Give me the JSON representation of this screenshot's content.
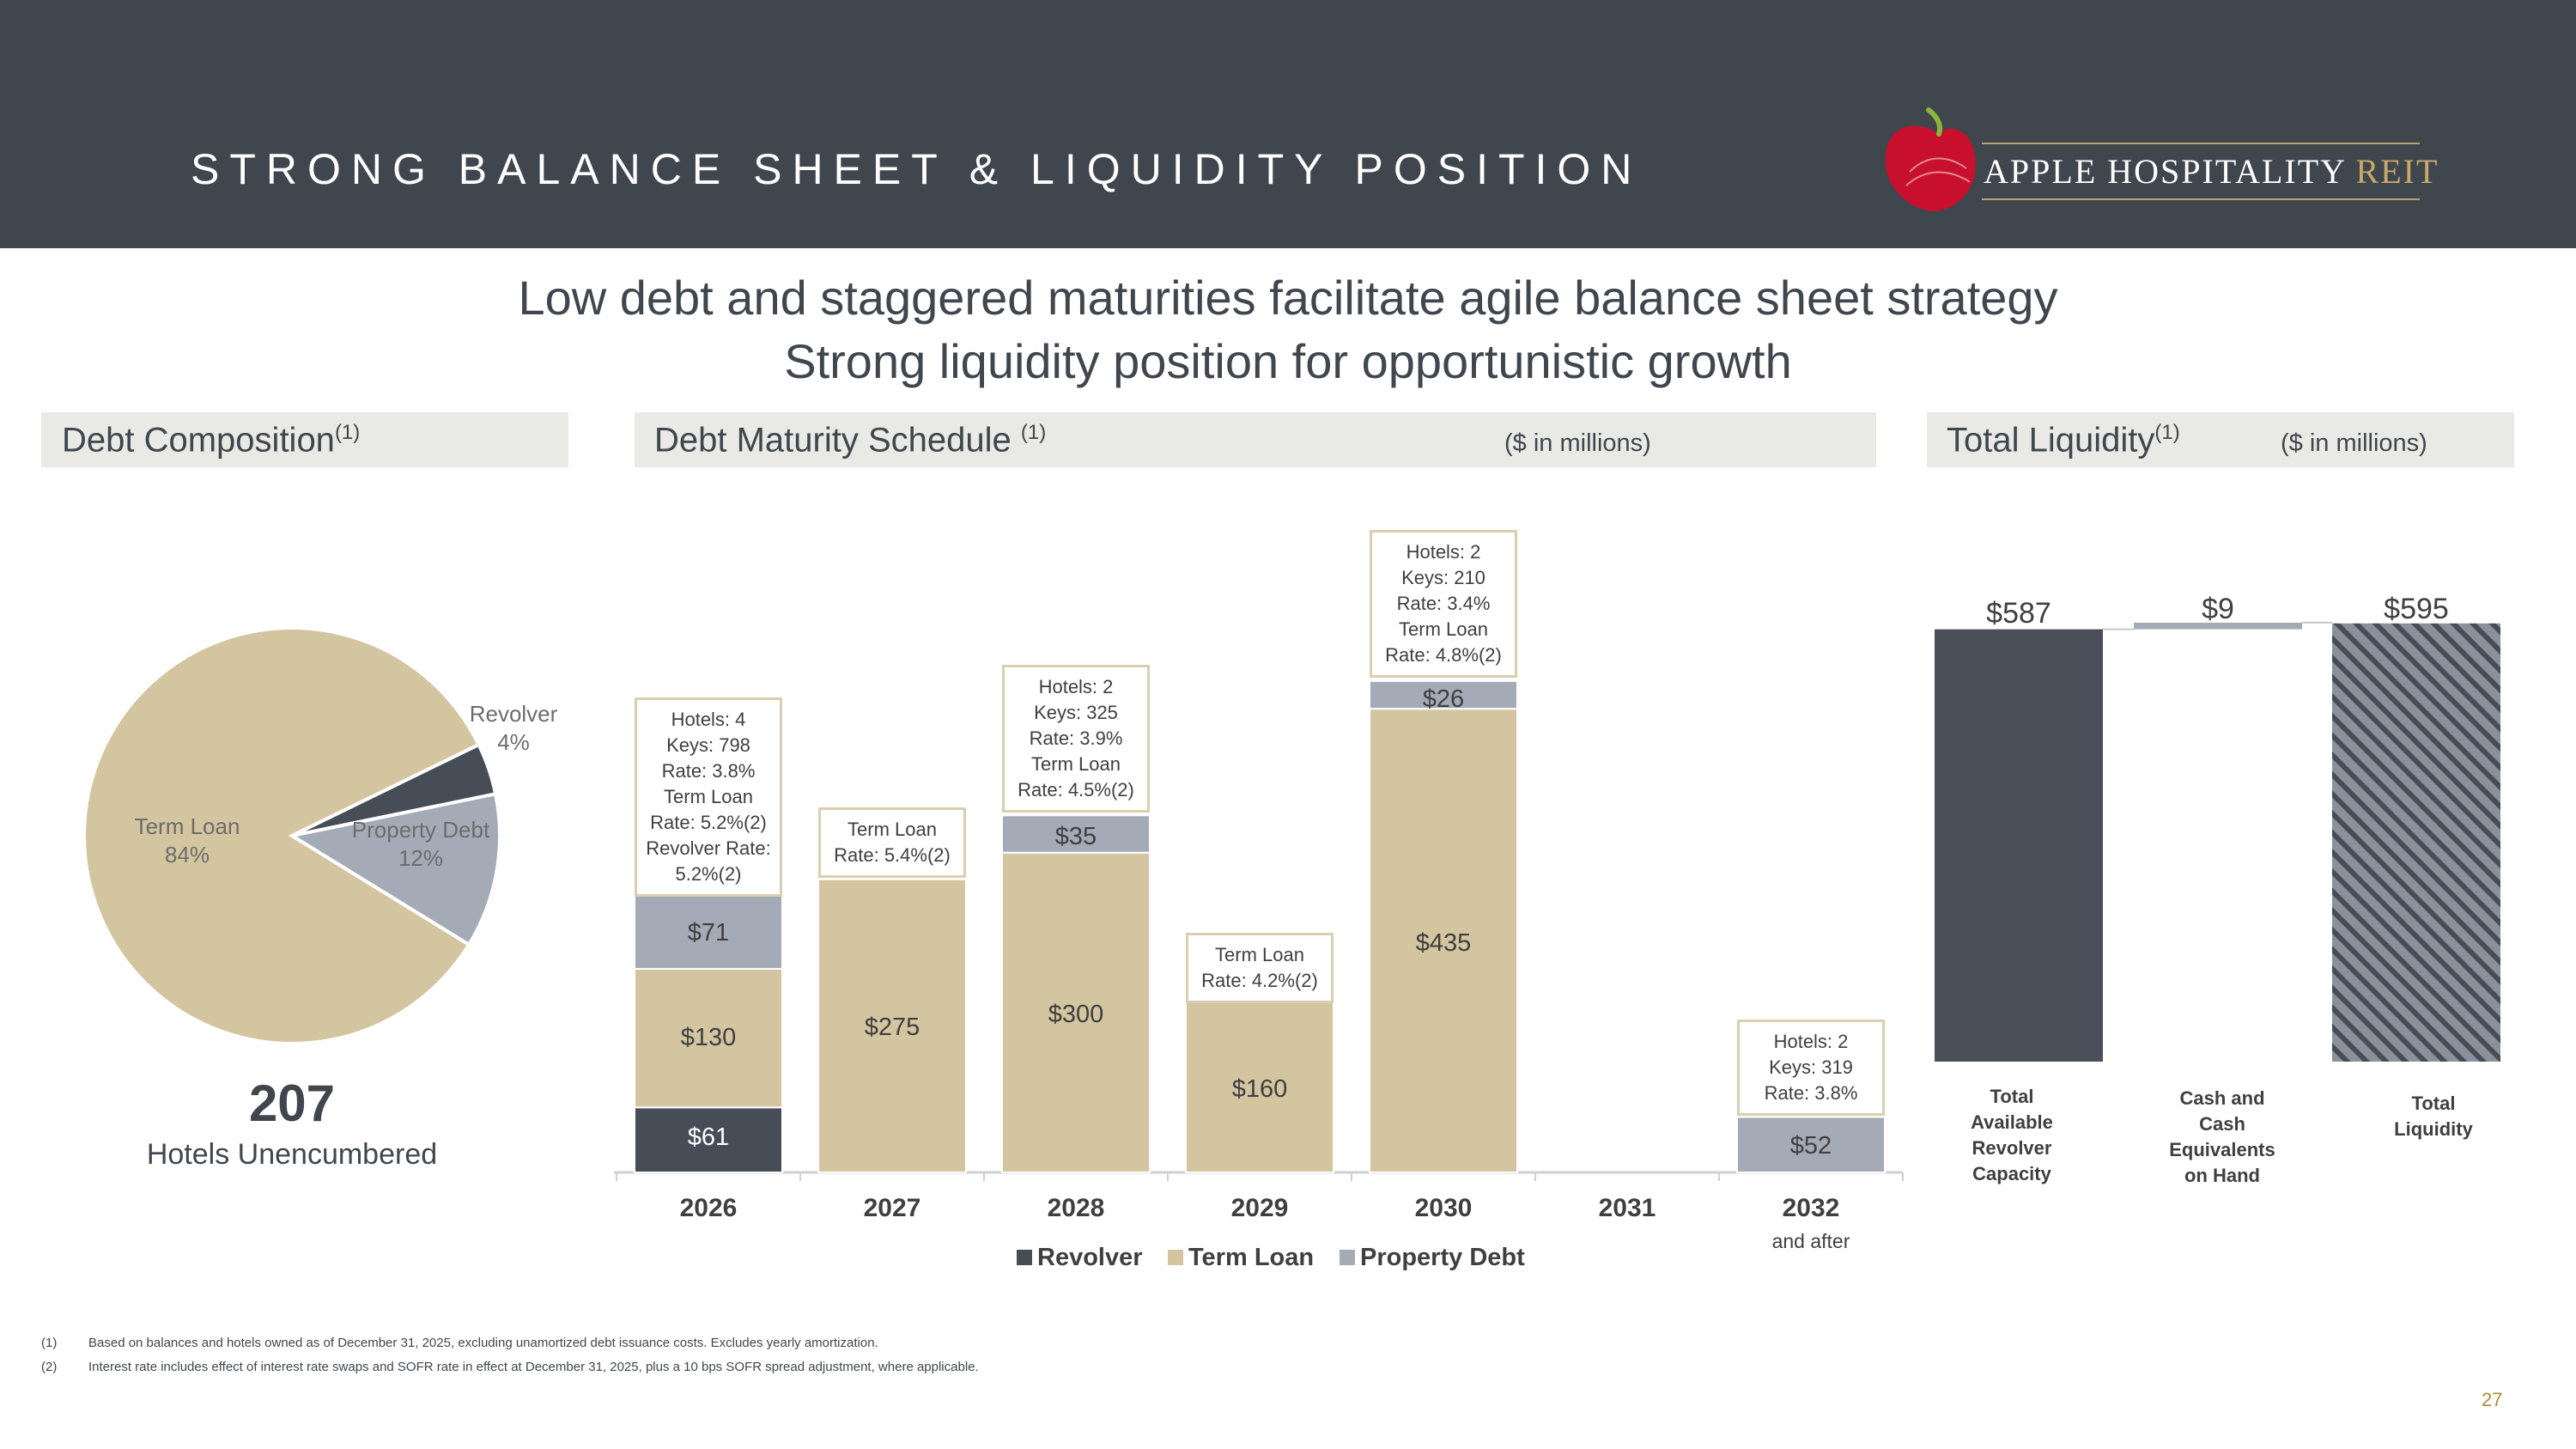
{
  "header": {
    "title": "STRONG BALANCE SHEET & LIQUIDITY POSITION",
    "logo_main": "APPLE HOSPITALITY",
    "logo_accent": "REIT"
  },
  "headline": {
    "line1": "Low debt and staggered maturities facilitate agile balance sheet strategy",
    "line2": "Strong liquidity position for opportunistic growth"
  },
  "sections": {
    "composition": {
      "title": "Debt Composition",
      "note": "(1)"
    },
    "maturity": {
      "title": "Debt Maturity Schedule",
      "note": "(1)",
      "unit": "($ in millions)"
    },
    "liquidity": {
      "title": "Total Liquidity",
      "note": "(1)",
      "unit": "($ in millions)"
    }
  },
  "unencumbered": {
    "value": "207",
    "label": "Hotels Unencumbered"
  },
  "callouts": {
    "y2026": [
      "Hotels: 4",
      "Keys: 798",
      "Rate: 3.8%",
      "Term Loan",
      "Rate: 5.2%(2)",
      "Revolver Rate:",
      "5.2%(2)"
    ],
    "y2027": [
      "Term Loan",
      "Rate: 5.4%(2)"
    ],
    "y2028": [
      "Hotels: 2",
      "Keys: 325",
      "Rate: 3.9%",
      "Term Loan",
      "Rate: 4.5%(2)"
    ],
    "y2029": [
      "Term Loan",
      "Rate: 4.2%(2)"
    ],
    "y2030": [
      "Hotels: 2",
      "Keys: 210",
      "Rate: 3.4%",
      "Term Loan",
      "Rate: 4.8%(2)"
    ],
    "y2032": [
      "Hotels: 2",
      "Keys: 319",
      "Rate: 3.8%"
    ]
  },
  "year_note": "and after",
  "chart_data": [
    {
      "type": "pie",
      "title": "Debt Composition",
      "slices": [
        {
          "label": "Term Loan",
          "value": 84,
          "display": "84%",
          "color": "#d4c5a1"
        },
        {
          "label": "Revolver",
          "value": 4,
          "display": "4%",
          "color": "#474d57"
        },
        {
          "label": "Property Debt",
          "value": 12,
          "display": "12%",
          "color": "#a4abb7"
        }
      ]
    },
    {
      "type": "bar",
      "stacked": true,
      "title": "Debt Maturity Schedule",
      "unit": "($ in millions)",
      "categories": [
        "2026",
        "2027",
        "2028",
        "2029",
        "2030",
        "2031",
        "2032"
      ],
      "series": [
        {
          "name": "Revolver",
          "color": "#474d57",
          "values": [
            61,
            0,
            0,
            0,
            0,
            0,
            0
          ],
          "labels": [
            "$61",
            "",
            "",
            "",
            "",
            "",
            ""
          ]
        },
        {
          "name": "Term Loan",
          "color": "#d4c5a1",
          "values": [
            130,
            275,
            300,
            160,
            435,
            0,
            0
          ],
          "labels": [
            "$130",
            "$275",
            "$300",
            "$160",
            "$435",
            "",
            ""
          ]
        },
        {
          "name": "Property Debt",
          "color": "#a4abb7",
          "values": [
            71,
            0,
            35,
            0,
            26,
            0,
            52
          ],
          "labels": [
            "$71",
            "",
            "$35",
            "",
            "$26",
            "",
            "$52"
          ]
        }
      ],
      "legend": "bottom"
    },
    {
      "type": "bar",
      "subtype": "waterfall",
      "title": "Total Liquidity",
      "unit": "($ in millions)",
      "categories": [
        "Total Available Revolver Capacity",
        "Cash and Cash Equivalents on Hand",
        "Total Liquidity"
      ],
      "category_lines": [
        [
          "Total",
          "Available",
          "Revolver",
          "Capacity"
        ],
        [
          "Cash and",
          "Cash",
          "Equivalents",
          "on Hand"
        ],
        [
          "Total",
          "Liquidity"
        ]
      ],
      "values": [
        587,
        9,
        595
      ],
      "labels": [
        "$587",
        "$9",
        "$595"
      ],
      "colors": [
        "#4a4f59",
        "#a4abb7",
        "#8a919d"
      ]
    }
  ],
  "footnotes": [
    {
      "num": "(1)",
      "text": "Based on balances and hotels owned as of December 31, 2025, excluding unamortized debt issuance costs. Excludes yearly amortization."
    },
    {
      "num": "(2)",
      "text": "Interest rate includes effect of interest rate swaps and SOFR rate in effect at December 31, 2025, plus a 10 bps SOFR spread adjustment, where applicable."
    }
  ],
  "page_number": "27"
}
